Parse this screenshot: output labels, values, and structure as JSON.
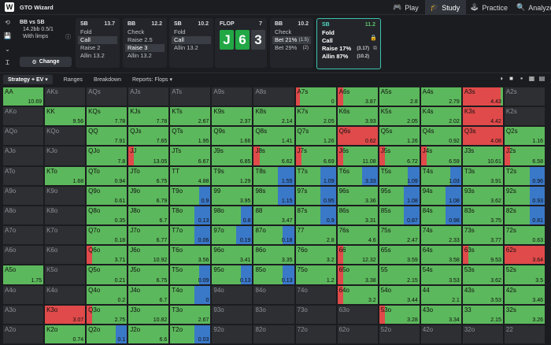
{
  "app": {
    "brand": "GTO Wizard",
    "logo": "W"
  },
  "nav": {
    "play": "Play",
    "study": "Study",
    "practice": "Practice",
    "analyze": "Analyze"
  },
  "colors": {
    "fold": "#5cb85c",
    "call": "#e04a4a",
    "raise": "#3a78c8",
    "empty": "#2d2f33",
    "accent": "#3cc3b0"
  },
  "spot": {
    "title": "BB vs SB",
    "line1": "14.2bb 0.5/1",
    "line2": "With limps",
    "change": "Change"
  },
  "panels": [
    {
      "pos": "SB",
      "stack": "13.7",
      "actions": [
        {
          "label": "Fold"
        },
        {
          "label": "Call",
          "sel": true
        },
        {
          "label": "Raise 2"
        },
        {
          "label": "Allin 13.2"
        }
      ]
    },
    {
      "pos": "BB",
      "stack": "12.2",
      "actions": [
        {
          "label": "Check"
        },
        {
          "label": "Raise 2.5"
        },
        {
          "label": "Raise 3",
          "sel": true
        },
        {
          "label": "Allin 13.2"
        }
      ]
    },
    {
      "pos": "SB",
      "stack": "10.2",
      "actions": [
        {
          "label": "Fold"
        },
        {
          "label": "Call",
          "sel": true
        },
        {
          "label": "Allin 13.2"
        }
      ]
    }
  ],
  "flop": {
    "label": "FLOP",
    "count": "7",
    "cards": [
      "J",
      "6",
      "3"
    ]
  },
  "bb_panel": {
    "pos": "BB",
    "stack": "10.2",
    "actions": [
      {
        "label": "Check"
      },
      {
        "label": "Bet 21%",
        "extra": "(1.5)",
        "sel": true
      },
      {
        "label": "Bet 29%",
        "extra": "(2)"
      }
    ]
  },
  "sb_panel": {
    "pos": "SB",
    "stack": "11.2",
    "actions": [
      {
        "label": "Fold"
      },
      {
        "label": "Call"
      },
      {
        "label": "Raise 17%",
        "extra": "(3.17)"
      },
      {
        "label": "Allin 87%",
        "extra": "(10.2)"
      }
    ]
  },
  "tabs": {
    "strategy": "Strategy + EV",
    "ranges": "Ranges",
    "breakdown": "Breakdown",
    "reports": "Reports: Flops"
  },
  "grid": [
    [
      "AA|F|10.69",
      "AKs|E",
      "AQs|E",
      "AJs|E",
      "ATs|E",
      "A9s|E",
      "A8s|E",
      "A7s|F5C|0",
      "A6s|F4C|3.87",
      "A5s|F|2.8",
      "A4s|F|2.79",
      "A3s|C95F5|4.43",
      "A2s|E"
    ],
    [
      "AKo|E",
      "KK|F|9.56",
      "KQs|F|7.78",
      "KJs|F|7.78",
      "KTs|F|2.67",
      "K9s|F|2.37",
      "K8s|F|2.14",
      "K7s|F|2.05",
      "K6s|F|3.93",
      "K5s|F|2.05",
      "K4s|F|2.02",
      "K3s|C|4.42",
      "K2s|E"
    ],
    [
      "AQo|E",
      "KQo|E",
      "QQ|F|7.91",
      "QJs|F|7.65",
      "QTs|F|1.95",
      "Q9s|F|1.66",
      "Q8s|F|1.41",
      "Q7s|F|1.26",
      "Q6s|C|0.62",
      "Q5s|F|1.26",
      "Q4s|F|0.92",
      "Q3s|C|4.08",
      "Q2s|F|1.16"
    ],
    [
      "AJo|E",
      "KJo|E",
      "QJo|F|7.8",
      "JJ|C5F|13.05",
      "JTs|F|6.67",
      "J9s|F|6.85",
      "J8s|C5F|6.62",
      "J7s|C5F|6.69",
      "J6s|C5F|11.08",
      "J5s|C5F|6.72",
      "J4s|C5F|6.59",
      "J3s|F|10.61",
      "J2s|C5F|6.58"
    ],
    [
      "ATo|E",
      "KTo|F|1.68",
      "QTo|F|0.94",
      "JTo|F|6.75",
      "TT|F|4.88",
      "T9s|F|1.29",
      "T8s|F60R|1.55",
      "T7s|F5R|1.09",
      "T6s|F5R|3.33",
      "T5s|F10R|1.09",
      "T4s|F10R|1.03",
      "T3s|F|3.91",
      "T2s|F5R|0.96"
    ],
    [
      "A9o|E",
      "K9o|E",
      "Q9o|F|0.61",
      "J9o|F|6.79",
      "T9o|F10R|0.9",
      "99|F|3.95",
      "98s|F60R|1.15",
      "97s|F5R|0.95",
      "96s|F|3.36",
      "95s|F5R|1.08",
      "94s|F5R|1.08",
      "93s|F|3.62",
      "92s|F5R|0.93"
    ],
    [
      "A8o|E",
      "K8o|E",
      "Q8o|F|0.35",
      "J8o|F|6.7",
      "T8o|F60R|0.13",
      "98o|F10R|0.8",
      "88|F|3.47",
      "87s|F5R|0.9",
      "86s|F|3.31",
      "85s|F5R|0.87",
      "84s|F5R|0.98",
      "83s|F|3.75",
      "82s|F5R|0.81"
    ],
    [
      "A7o|E",
      "K7o|E",
      "Q7o|F|0.18",
      "J7o|F|6.77",
      "T7o|F60R|0.06",
      "97o|F60R|0.19",
      "87o|F10R|0.18",
      "77|F|2.8",
      "76s|F|4.6",
      "75s|F|2.47",
      "74s|F|2.33",
      "73s|F|3.77",
      "72s|F|0.63"
    ],
    [
      "A6o|E",
      "K6o|E",
      "Q6o|C5F|3.71",
      "J6o|F|10.92",
      "T6o|F|3.56",
      "96o|F|3.41",
      "86o|F|3.35",
      "76o|F|3.2",
      "66|C5F|12.32",
      "65s|F|3.59",
      "64s|F|3.58",
      "63s|C5F|9.53",
      "62s|C|3.64"
    ],
    [
      "A5o|F|1.75",
      "K5o|E",
      "Q5o|F|0.21",
      "J5o|F|6.75",
      "T5o|F10R|0.09",
      "95o|F10R|0.13",
      "85o|F10R|0.13",
      "75o|F|1.2",
      "65o|C5F|3.38",
      "55|F|2.15",
      "54s|F|3.53",
      "53s|F|3.62",
      "52s|F|3.5"
    ],
    [
      "A4o|E",
      "K4o|E",
      "Q4o|F|0.2",
      "J4o|F|6.7",
      "T4o|F60R|0",
      "94o|E",
      "84o|E",
      "74o|E",
      "64o|C5F|3.2",
      "54o|F|3.44",
      "44|F|2.1",
      "43s|F|3.53",
      "42s|F|3.46"
    ],
    [
      "A3o|E",
      "K3o|C|3.07",
      "Q3o|C5F|2.75",
      "J3o|F|10.82",
      "T3o|F|2.67",
      "93o|E",
      "83o|E",
      "73o|E",
      "63o|E",
      "53o|C5F|3.28",
      "43o|F|3.34",
      "33|F|2.15",
      "32s|F|3.26"
    ],
    [
      "A2o|E",
      "K2o|F|0.74",
      "Q2o|F10R|0.1",
      "J2o|F|6.6",
      "T2o|F60R|0.03",
      "92o|E",
      "82o|E",
      "72o|E",
      "62o|E",
      "52o|E",
      "42o|E",
      "32o|E",
      "22|E"
    ]
  ]
}
